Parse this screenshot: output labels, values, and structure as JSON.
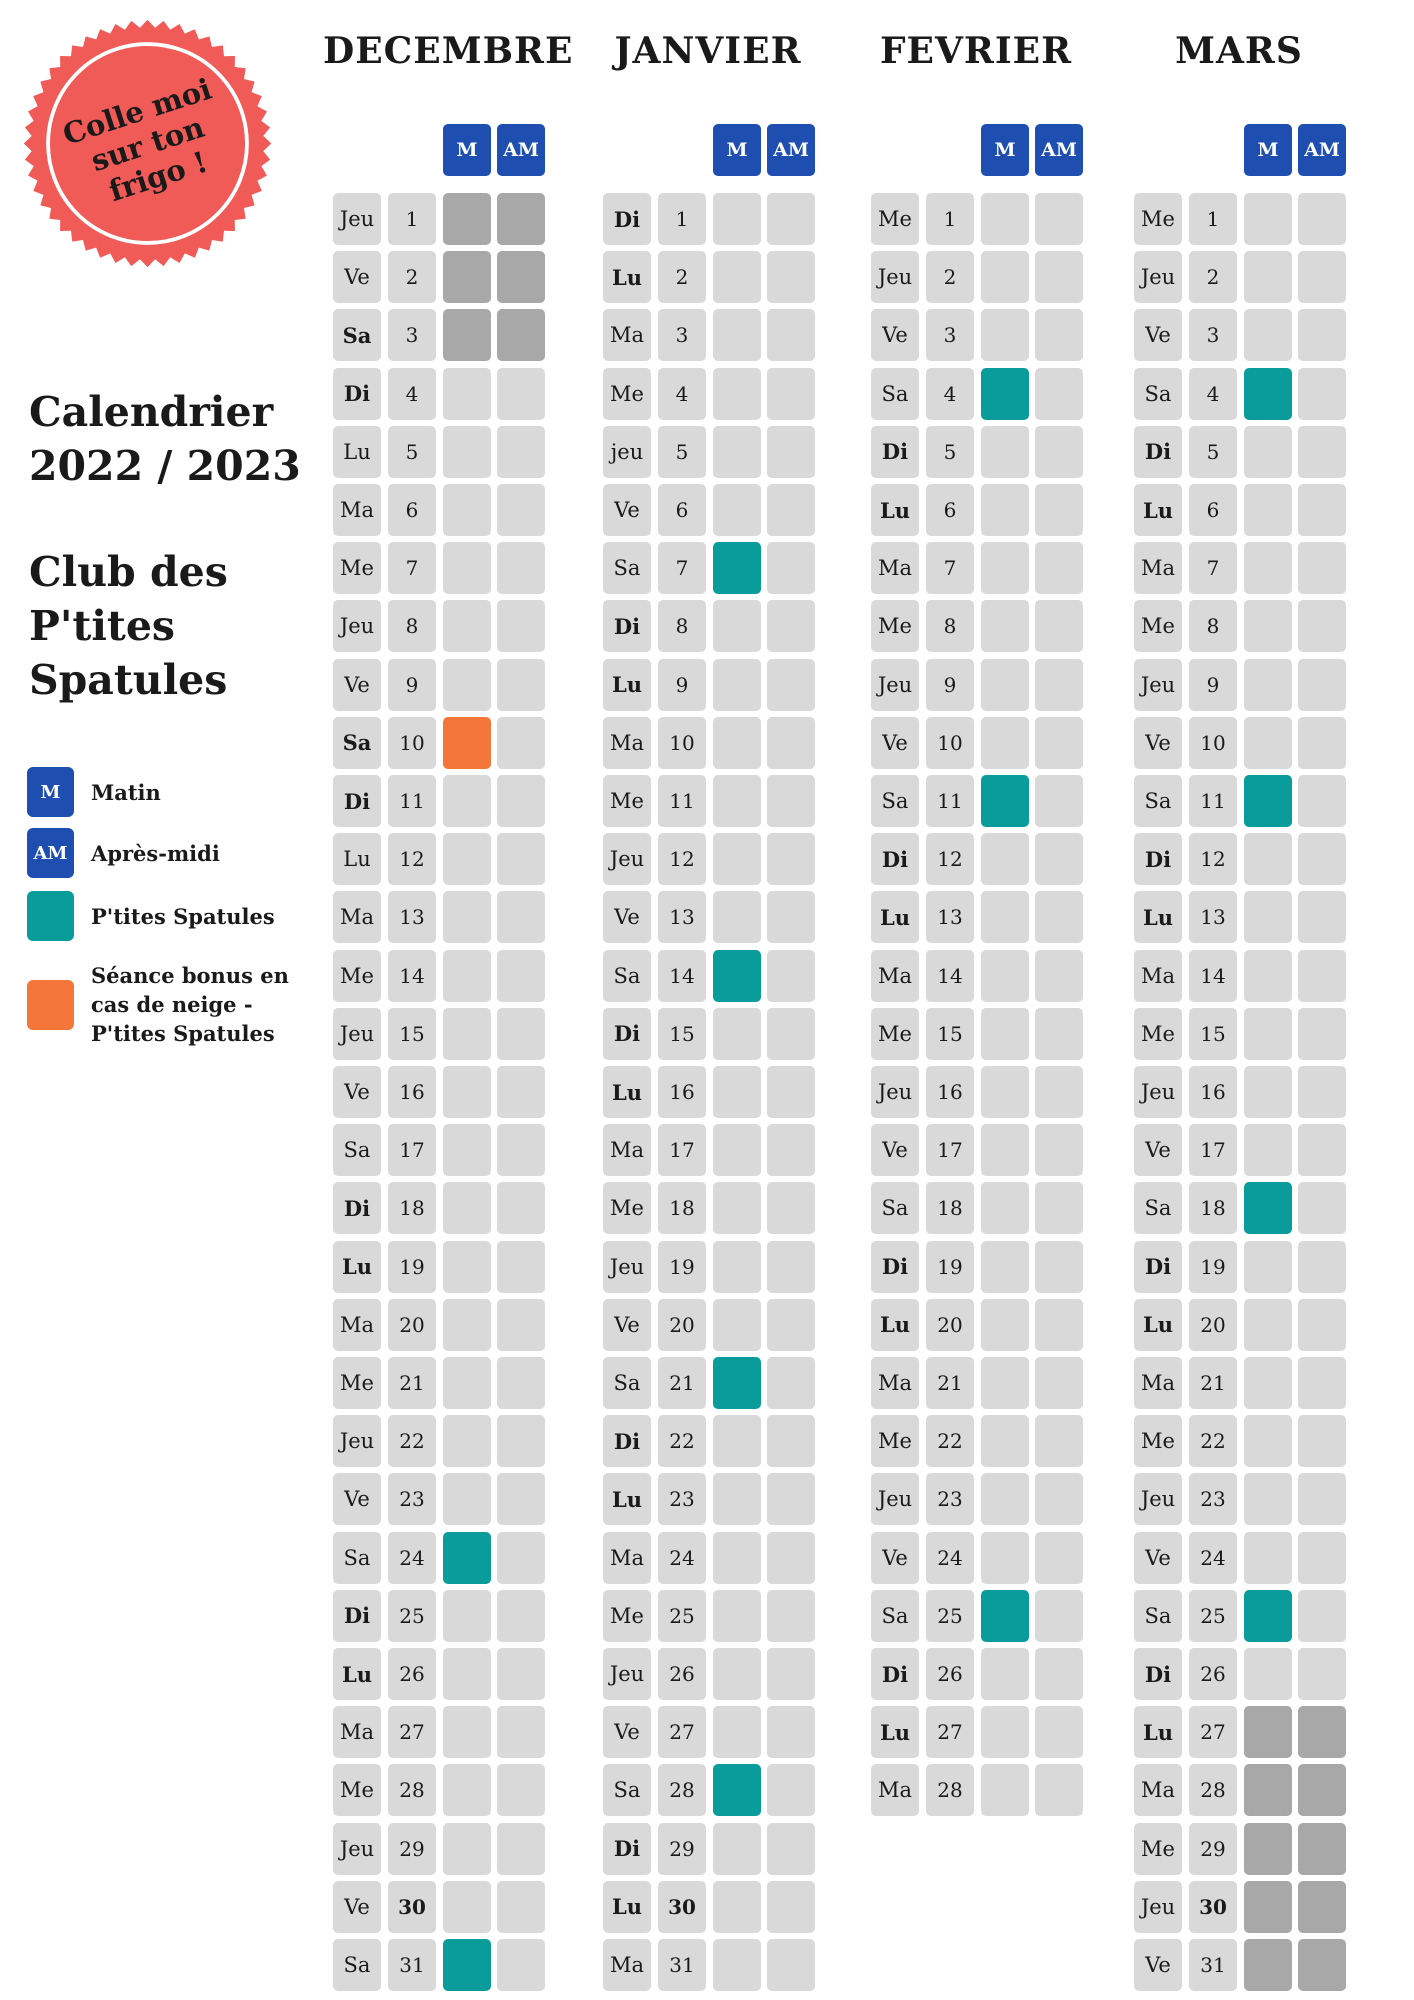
{
  "stamp": {
    "lines": [
      "Colle moi",
      "sur ton",
      "frigo !"
    ],
    "color": "#f05a57"
  },
  "sidebar": {
    "calendar_title": [
      "Calendrier",
      "2022 / 2023"
    ],
    "club_title": [
      "Club des",
      "P'tites",
      "Spatules"
    ]
  },
  "legend": [
    {
      "swatch_text": "M",
      "color": "#1e4fb0",
      "label": [
        "Matin"
      ]
    },
    {
      "swatch_text": "AM",
      "color": "#1e4fb0",
      "label": [
        "Après-midi"
      ]
    },
    {
      "swatch_text": "",
      "color": "#0a9b9b",
      "label": [
        "P'tites Spatules"
      ]
    },
    {
      "swatch_text": "",
      "color": "#f5763a",
      "label": [
        "Séance bonus en",
        "cas de neige -",
        "P'tites Spatules"
      ]
    }
  ],
  "header_labels": {
    "m": "M",
    "am": "AM"
  },
  "colors": {
    "teal": "#0a9b9b",
    "orange": "#f5763a",
    "grey_closed": "#a8a8a8",
    "cell": "#d9d9d9",
    "header_blue": "#1e4fb0"
  },
  "months": [
    {
      "name": "DECEMBRE",
      "days": [
        {
          "d": "Jeu",
          "n": "1",
          "m": "grey",
          "am": "grey"
        },
        {
          "d": "Ve",
          "n": "2",
          "m": "grey",
          "am": "grey"
        },
        {
          "d": "Sa",
          "n": "3",
          "m": "grey",
          "am": "grey",
          "bold": true
        },
        {
          "d": "Di",
          "n": "4",
          "bold": true
        },
        {
          "d": "Lu",
          "n": "5"
        },
        {
          "d": "Ma",
          "n": "6"
        },
        {
          "d": "Me",
          "n": "7"
        },
        {
          "d": "Jeu",
          "n": "8"
        },
        {
          "d": "Ve",
          "n": "9"
        },
        {
          "d": "Sa",
          "n": "10",
          "m": "orange",
          "bold": true
        },
        {
          "d": "Di",
          "n": "11",
          "bold": true
        },
        {
          "d": "Lu",
          "n": "12"
        },
        {
          "d": "Ma",
          "n": "13"
        },
        {
          "d": "Me",
          "n": "14"
        },
        {
          "d": "Jeu",
          "n": "15"
        },
        {
          "d": "Ve",
          "n": "16"
        },
        {
          "d": "Sa",
          "n": "17"
        },
        {
          "d": "Di",
          "n": "18",
          "bold": true
        },
        {
          "d": "Lu",
          "n": "19",
          "bold": true
        },
        {
          "d": "Ma",
          "n": "20"
        },
        {
          "d": "Me",
          "n": "21"
        },
        {
          "d": "Jeu",
          "n": "22"
        },
        {
          "d": "Ve",
          "n": "23"
        },
        {
          "d": "Sa",
          "n": "24",
          "m": "teal"
        },
        {
          "d": "Di",
          "n": "25",
          "bold": true
        },
        {
          "d": "Lu",
          "n": "26",
          "bold": true
        },
        {
          "d": "Ma",
          "n": "27"
        },
        {
          "d": "Me",
          "n": "28"
        },
        {
          "d": "Jeu",
          "n": "29"
        },
        {
          "d": "Ve",
          "n": "30",
          "nbold": true
        },
        {
          "d": "Sa",
          "n": "31",
          "m": "teal"
        }
      ]
    },
    {
      "name": "JANVIER",
      "days": [
        {
          "d": "Di",
          "n": "1",
          "bold": true
        },
        {
          "d": "Lu",
          "n": "2",
          "bold": true
        },
        {
          "d": "Ma",
          "n": "3"
        },
        {
          "d": "Me",
          "n": "4"
        },
        {
          "d": "jeu",
          "n": "5"
        },
        {
          "d": "Ve",
          "n": "6"
        },
        {
          "d": "Sa",
          "n": "7",
          "m": "teal"
        },
        {
          "d": "Di",
          "n": "8",
          "bold": true
        },
        {
          "d": "Lu",
          "n": "9",
          "bold": true
        },
        {
          "d": "Ma",
          "n": "10"
        },
        {
          "d": "Me",
          "n": "11"
        },
        {
          "d": "Jeu",
          "n": "12"
        },
        {
          "d": "Ve",
          "n": "13"
        },
        {
          "d": "Sa",
          "n": "14",
          "m": "teal"
        },
        {
          "d": "Di",
          "n": "15",
          "bold": true
        },
        {
          "d": "Lu",
          "n": "16",
          "bold": true
        },
        {
          "d": "Ma",
          "n": "17"
        },
        {
          "d": "Me",
          "n": "18"
        },
        {
          "d": "Jeu",
          "n": "19"
        },
        {
          "d": "Ve",
          "n": "20"
        },
        {
          "d": "Sa",
          "n": "21",
          "m": "teal"
        },
        {
          "d": "Di",
          "n": "22",
          "bold": true
        },
        {
          "d": "Lu",
          "n": "23",
          "bold": true
        },
        {
          "d": "Ma",
          "n": "24"
        },
        {
          "d": "Me",
          "n": "25"
        },
        {
          "d": "Jeu",
          "n": "26"
        },
        {
          "d": "Ve",
          "n": "27"
        },
        {
          "d": "Sa",
          "n": "28",
          "m": "teal"
        },
        {
          "d": "Di",
          "n": "29",
          "bold": true
        },
        {
          "d": "Lu",
          "n": "30",
          "bold": true,
          "nbold": true
        },
        {
          "d": "Ma",
          "n": "31"
        }
      ]
    },
    {
      "name": "FEVRIER",
      "days": [
        {
          "d": "Me",
          "n": "1"
        },
        {
          "d": "Jeu",
          "n": "2"
        },
        {
          "d": "Ve",
          "n": "3"
        },
        {
          "d": "Sa",
          "n": "4",
          "m": "teal"
        },
        {
          "d": "Di",
          "n": "5",
          "bold": true
        },
        {
          "d": "Lu",
          "n": "6",
          "bold": true
        },
        {
          "d": "Ma",
          "n": "7"
        },
        {
          "d": "Me",
          "n": "8"
        },
        {
          "d": "Jeu",
          "n": "9"
        },
        {
          "d": "Ve",
          "n": "10"
        },
        {
          "d": "Sa",
          "n": "11",
          "m": "teal"
        },
        {
          "d": "Di",
          "n": "12",
          "bold": true
        },
        {
          "d": "Lu",
          "n": "13",
          "bold": true
        },
        {
          "d": "Ma",
          "n": "14"
        },
        {
          "d": "Me",
          "n": "15"
        },
        {
          "d": "Jeu",
          "n": "16"
        },
        {
          "d": "Ve",
          "n": "17"
        },
        {
          "d": "Sa",
          "n": "18"
        },
        {
          "d": "Di",
          "n": "19",
          "bold": true
        },
        {
          "d": "Lu",
          "n": "20",
          "bold": true
        },
        {
          "d": "Ma",
          "n": "21"
        },
        {
          "d": "Me",
          "n": "22"
        },
        {
          "d": "Jeu",
          "n": "23"
        },
        {
          "d": "Ve",
          "n": "24"
        },
        {
          "d": "Sa",
          "n": "25",
          "m": "teal"
        },
        {
          "d": "Di",
          "n": "26",
          "bold": true
        },
        {
          "d": "Lu",
          "n": "27",
          "bold": true
        },
        {
          "d": "Ma",
          "n": "28"
        }
      ]
    },
    {
      "name": "MARS",
      "days": [
        {
          "d": "Me",
          "n": "1"
        },
        {
          "d": "Jeu",
          "n": "2"
        },
        {
          "d": "Ve",
          "n": "3"
        },
        {
          "d": "Sa",
          "n": "4",
          "m": "teal"
        },
        {
          "d": "Di",
          "n": "5",
          "bold": true
        },
        {
          "d": "Lu",
          "n": "6",
          "bold": true
        },
        {
          "d": "Ma",
          "n": "7"
        },
        {
          "d": "Me",
          "n": "8"
        },
        {
          "d": "Jeu",
          "n": "9"
        },
        {
          "d": "Ve",
          "n": "10"
        },
        {
          "d": "Sa",
          "n": "11",
          "m": "teal"
        },
        {
          "d": "Di",
          "n": "12",
          "bold": true
        },
        {
          "d": "Lu",
          "n": "13",
          "bold": true
        },
        {
          "d": "Ma",
          "n": "14"
        },
        {
          "d": "Me",
          "n": "15"
        },
        {
          "d": "Jeu",
          "n": "16"
        },
        {
          "d": "Ve",
          "n": "17"
        },
        {
          "d": "Sa",
          "n": "18",
          "m": "teal"
        },
        {
          "d": "Di",
          "n": "19",
          "bold": true
        },
        {
          "d": "Lu",
          "n": "20",
          "bold": true
        },
        {
          "d": "Ma",
          "n": "21"
        },
        {
          "d": "Me",
          "n": "22"
        },
        {
          "d": "Jeu",
          "n": "23"
        },
        {
          "d": "Ve",
          "n": "24"
        },
        {
          "d": "Sa",
          "n": "25",
          "m": "teal"
        },
        {
          "d": "Di",
          "n": "26",
          "bold": true
        },
        {
          "d": "Lu",
          "n": "27",
          "bold": true,
          "m": "grey",
          "am": "grey"
        },
        {
          "d": "Ma",
          "n": "28",
          "m": "grey",
          "am": "grey"
        },
        {
          "d": "Me",
          "n": "29",
          "m": "grey",
          "am": "grey"
        },
        {
          "d": "Jeu",
          "n": "30",
          "nbold": true,
          "m": "grey",
          "am": "grey"
        },
        {
          "d": "Ve",
          "n": "31",
          "m": "grey",
          "am": "grey"
        }
      ]
    }
  ]
}
